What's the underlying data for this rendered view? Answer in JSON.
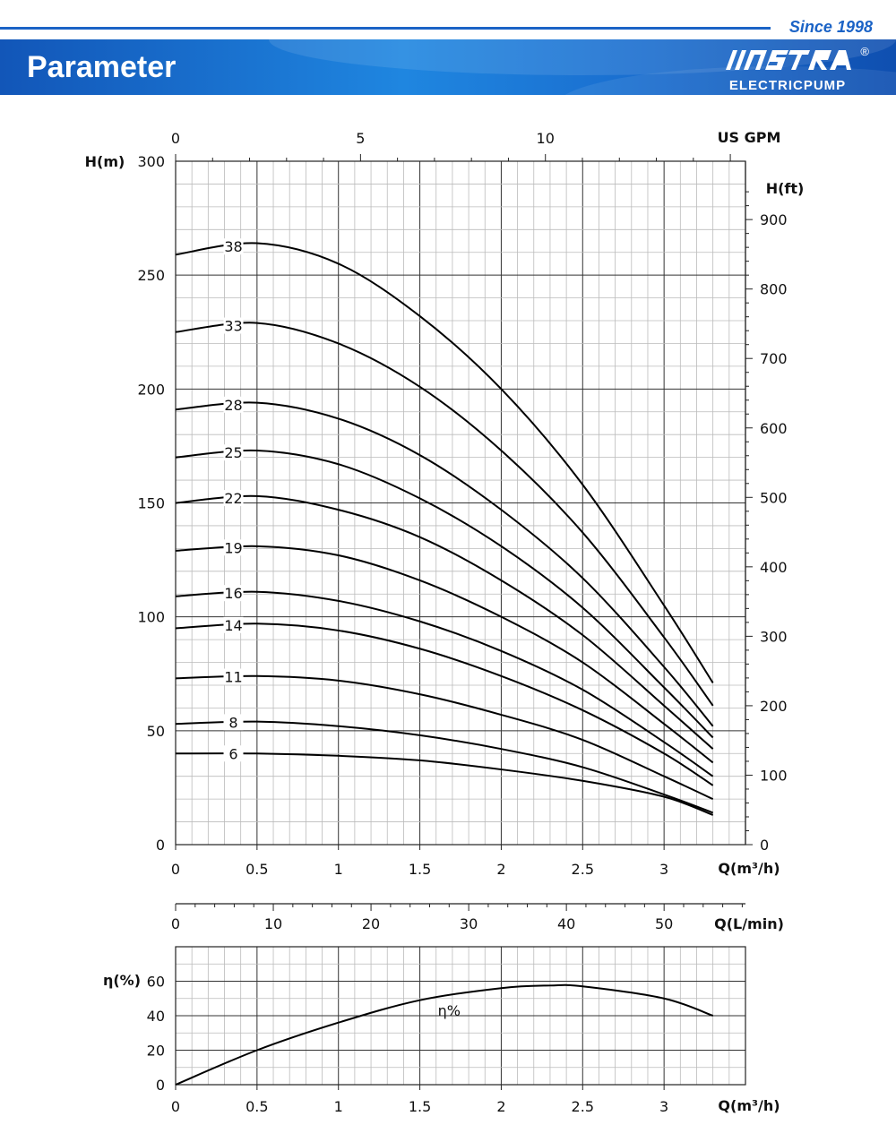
{
  "header": {
    "since": "Since 1998",
    "title": "Parameter",
    "logo_word": "MASTRA",
    "logo_sub": "ELECTRICPUMP",
    "logo_reg": "®",
    "logo_icon": "mastra-logo-icon",
    "accent_color": "#1b63c6"
  },
  "chart_data": [
    {
      "type": "line",
      "title": "",
      "xlabel": "Q(m³/h)",
      "ylabel": "H(m)",
      "y2label": "H(ft)",
      "x2label": "US GPM",
      "xlim": [
        0,
        3.5
      ],
      "ylim": [
        0,
        300
      ],
      "y2lim": [
        0,
        984
      ],
      "x2lim": [
        0,
        15.41
      ],
      "xticks": [
        "0",
        "0.5",
        "1",
        "1.5",
        "2",
        "2.5",
        "3"
      ],
      "yticks": [
        "0",
        "50",
        "100",
        "150",
        "200",
        "250",
        "300"
      ],
      "y2ticks": [
        "0",
        "100",
        "200",
        "300",
        "400",
        "500",
        "600",
        "700",
        "800",
        "900"
      ],
      "x2ticks": [
        "0",
        "5",
        "10"
      ],
      "grid": true,
      "series": [
        {
          "name": "38",
          "x": [
            0,
            0.5,
            1,
            1.5,
            2,
            2.5,
            3,
            3.3
          ],
          "values": [
            259,
            264,
            255,
            232,
            200,
            158,
            105,
            71
          ]
        },
        {
          "name": "33",
          "x": [
            0,
            0.5,
            1,
            1.5,
            2,
            2.5,
            3,
            3.3
          ],
          "values": [
            225,
            229,
            220,
            201,
            173,
            137,
            91,
            61
          ]
        },
        {
          "name": "28",
          "x": [
            0,
            0.5,
            1,
            1.5,
            2,
            2.5,
            3,
            3.3
          ],
          "values": [
            191,
            194,
            187,
            171,
            147,
            117,
            78,
            52
          ]
        },
        {
          "name": "25",
          "x": [
            0,
            0.5,
            1,
            1.5,
            2,
            2.5,
            3,
            3.3
          ],
          "values": [
            170,
            173,
            167,
            152,
            131,
            104,
            69,
            47
          ]
        },
        {
          "name": "22",
          "x": [
            0,
            0.5,
            1,
            1.5,
            2,
            2.5,
            3,
            3.3
          ],
          "values": [
            150,
            153,
            147,
            135,
            116,
            92,
            61,
            42
          ]
        },
        {
          "name": "19",
          "x": [
            0,
            0.5,
            1,
            1.5,
            2,
            2.5,
            3,
            3.3
          ],
          "values": [
            129,
            131,
            127,
            116,
            100,
            80,
            53,
            36
          ]
        },
        {
          "name": "16",
          "x": [
            0,
            0.5,
            1,
            1.5,
            2,
            2.5,
            3,
            3.3
          ],
          "values": [
            109,
            111,
            107,
            98,
            85,
            68,
            45,
            30
          ]
        },
        {
          "name": "14",
          "x": [
            0,
            0.5,
            1,
            1.5,
            2,
            2.5,
            3,
            3.3
          ],
          "values": [
            95,
            97,
            94,
            86,
            74,
            59,
            40,
            26
          ]
        },
        {
          "name": "11",
          "x": [
            0,
            0.5,
            1,
            1.5,
            2,
            2.5,
            3,
            3.3
          ],
          "values": [
            73,
            74,
            72,
            66,
            57,
            46,
            30,
            20
          ]
        },
        {
          "name": "8",
          "x": [
            0,
            0.5,
            1,
            1.5,
            2,
            2.5,
            3,
            3.3
          ],
          "values": [
            53,
            54,
            52,
            48,
            42,
            34,
            22,
            14
          ]
        },
        {
          "name": "6",
          "x": [
            0,
            0.5,
            1,
            1.5,
            2,
            2.5,
            3,
            3.3
          ],
          "values": [
            40,
            40,
            39,
            37,
            33,
            28,
            21,
            13
          ]
        }
      ]
    },
    {
      "type": "line",
      "title": "",
      "xlabel": "Q(m³/h)",
      "ylabel": "η(%)",
      "x2label": "Q(L/min)",
      "xlim": [
        0,
        3.5
      ],
      "ylim": [
        0,
        80
      ],
      "x2lim": [
        0,
        58.33
      ],
      "xticks": [
        "0",
        "0.5",
        "1",
        "1.5",
        "2",
        "2.5",
        "3"
      ],
      "yticks": [
        "0",
        "20",
        "40",
        "60"
      ],
      "x2ticks": [
        "0",
        "10",
        "20",
        "30",
        "40",
        "50"
      ],
      "grid": true,
      "series": [
        {
          "name": "η%",
          "x": [
            0,
            0.5,
            1,
            1.5,
            2,
            2.3,
            2.5,
            3,
            3.3
          ],
          "values": [
            0,
            20,
            36,
            49,
            56,
            57.5,
            57,
            50,
            40
          ]
        }
      ]
    }
  ]
}
